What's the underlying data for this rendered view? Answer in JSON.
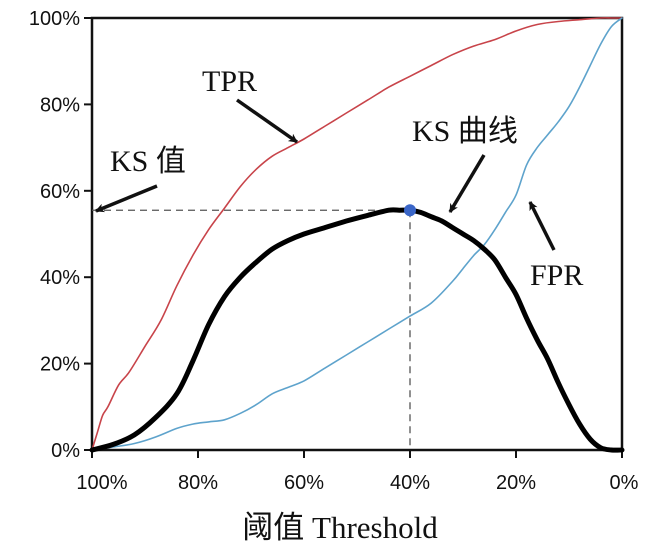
{
  "chart_data": {
    "type": "line",
    "title": "",
    "xlabel": "阈值 Threshold",
    "ylabel": "",
    "x_reversed": true,
    "xlim": [
      0,
      100
    ],
    "ylim": [
      0,
      100
    ],
    "grid": false,
    "x_ticks": [
      "100%",
      "80%",
      "60%",
      "40%",
      "20%",
      "0%"
    ],
    "x_tick_values": [
      100,
      80,
      60,
      40,
      20,
      0
    ],
    "y_ticks": [
      "0%",
      "20%",
      "40%",
      "60%",
      "80%",
      "100%"
    ],
    "y_tick_values": [
      0,
      20,
      40,
      60,
      80,
      100
    ],
    "series": [
      {
        "name": "TPR",
        "color": "#c8444a",
        "x": [
          100,
          99,
          98,
          97,
          95,
          93,
          90,
          87,
          84,
          81,
          78,
          75,
          72,
          69,
          66,
          63,
          60,
          56,
          52,
          48,
          44,
          40,
          36,
          32,
          28,
          24,
          20,
          16,
          12,
          8,
          4,
          2,
          0
        ],
        "y": [
          0,
          4,
          8,
          10,
          15,
          18,
          24,
          30,
          38,
          45,
          51,
          56,
          61,
          65,
          68,
          70,
          72,
          75,
          78,
          81,
          84,
          86.5,
          89,
          91.5,
          93.5,
          95,
          97,
          98.5,
          99.2,
          99.6,
          100,
          100,
          100
        ]
      },
      {
        "name": "FPR",
        "color": "#5ea3cc",
        "x": [
          100,
          96,
          92,
          88,
          84,
          81,
          78,
          75,
          72,
          69,
          66,
          63,
          60,
          56,
          52,
          48,
          44,
          40,
          36,
          32,
          30,
          28,
          26,
          24,
          22,
          20,
          18,
          16,
          14,
          12,
          10,
          8,
          6,
          4,
          2,
          0
        ],
        "y": [
          0,
          0.7,
          1.5,
          3,
          5,
          6,
          6.5,
          7,
          8.5,
          10.5,
          13,
          14.5,
          16,
          19,
          22,
          25,
          28,
          31,
          34,
          39,
          42,
          45,
          47.5,
          51,
          55,
          59,
          66,
          70,
          73,
          76,
          79.5,
          84,
          89,
          94,
          98,
          100
        ]
      },
      {
        "name": "KS 曲线",
        "color": "#000000",
        "x": [
          100,
          96,
          92,
          88,
          84,
          81,
          78,
          75,
          72,
          69,
          66,
          63,
          60,
          56,
          52,
          48,
          44,
          42,
          40,
          38,
          36,
          34,
          32,
          30,
          28,
          26,
          24,
          22,
          20,
          18,
          16,
          14,
          12,
          10,
          8,
          6,
          4,
          2,
          0
        ],
        "y": [
          0,
          1.3,
          3.5,
          7.5,
          13,
          20.5,
          29,
          35.5,
          40,
          43.5,
          46.5,
          48.5,
          50,
          51.5,
          53,
          54.3,
          55.5,
          55.5,
          55.5,
          55,
          54,
          53,
          51.5,
          50,
          48.5,
          46.5,
          44,
          40,
          36,
          30.5,
          25.5,
          21,
          15.5,
          10.5,
          6,
          2.5,
          0.5,
          0,
          0
        ]
      }
    ],
    "ks_point": {
      "x": 40,
      "y": 55.5,
      "color": "#3a66c8"
    },
    "annotations": [
      {
        "text": "TPR"
      },
      {
        "text": "KS 值"
      },
      {
        "text": "KS 曲线"
      },
      {
        "text": "FPR"
      }
    ]
  }
}
